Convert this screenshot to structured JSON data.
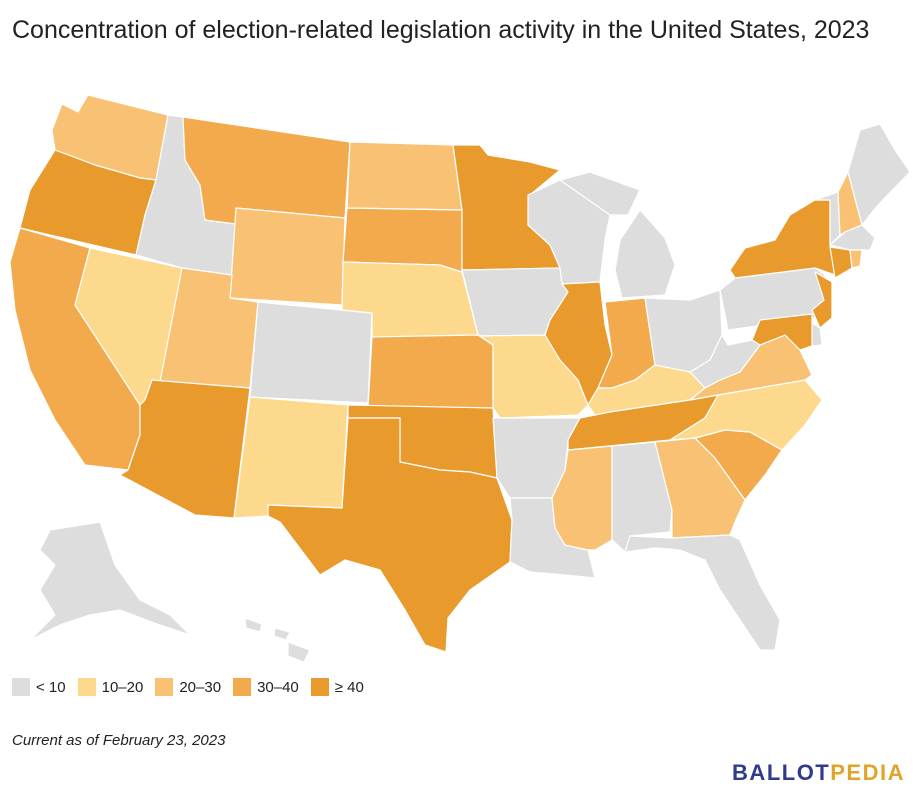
{
  "title": "Concentration of election-related legislation activity in the United States, 2023",
  "note": "Current as of February 23, 2023",
  "logo": {
    "part1": "BALLOT",
    "part2": "PEDIA",
    "color1": "#2f3c8c",
    "color2": "#e2a32b"
  },
  "legend": [
    {
      "label": "< 10",
      "color": "#dddddd"
    },
    {
      "label": "10–20",
      "color": "#fcd98c"
    },
    {
      "label": "20–30",
      "color": "#f9c174"
    },
    {
      "label": "30–40",
      "color": "#f2aa4c"
    },
    {
      "label": "≥ 40",
      "color": "#e89a2c"
    }
  ],
  "states": {
    "WA": "20–30",
    "OR": "≥ 40",
    "CA": "30–40",
    "NV": "10–20",
    "ID": "< 10",
    "MT": "30–40",
    "WY": "20–30",
    "UT": "20–30",
    "AZ": "≥ 40",
    "CO": "< 10",
    "NM": "10–20",
    "ND": "20–30",
    "SD": "30–40",
    "NE": "10–20",
    "KS": "30–40",
    "OK": "≥ 40",
    "TX": "≥ 40",
    "MN": "≥ 40",
    "IA": "< 10",
    "MO": "10–20",
    "AR": "< 10",
    "LA": "< 10",
    "WI": "< 10",
    "IL": "≥ 40",
    "MI": "< 10",
    "IN": "30–40",
    "KY": "10–20",
    "TN": "≥ 40",
    "MS": "20–30",
    "AL": "< 10",
    "OH": "< 10",
    "WV": "< 10",
    "VA": "20–30",
    "NC": "10–20",
    "SC": "30–40",
    "GA": "20–30",
    "FL": "< 10",
    "PA": "< 10",
    "NY": "≥ 40",
    "VT": "< 10",
    "NH": "20–30",
    "ME": "< 10",
    "MA": "< 10",
    "RI": "20–30",
    "CT": "≥ 40",
    "NJ": "≥ 40",
    "DE": "< 10",
    "MD": "≥ 40",
    "AK": "< 10",
    "HI": "< 10"
  }
}
